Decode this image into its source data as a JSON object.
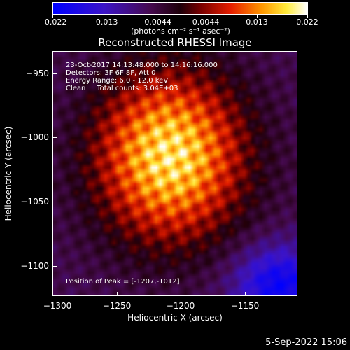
{
  "colorbar": {
    "ticks": [
      "−0.022",
      "−0.013",
      "−0.0044",
      "0.0044",
      "0.013",
      "0.022"
    ],
    "units": "(photons cm⁻² s⁻¹ asec⁻²)"
  },
  "plot": {
    "title": "Reconstructed RHESSI Image",
    "annotation": {
      "line1": "23-Oct-2017 14:13:48.000 to 14:16:16.000",
      "line2": "Detectors: 3F 6F 8F, Att 0",
      "line3": "Energy Range: 6.0 - 12.0 keV",
      "line4": "Clean     Total counts: 3.04E+03"
    },
    "peak": "Position of Peak = [-1207,-1012]",
    "xlabel": "Heliocentric X (arcsec)",
    "ylabel": "Heliocentric Y (arcsec)",
    "xticks": [
      "−1300",
      "−1250",
      "−1200",
      "−1150"
    ],
    "yticks": [
      "−950",
      "−1000",
      "−1050",
      "−1100"
    ]
  },
  "date_stamp": "5-Sep-2022 15:06",
  "colormap": "rainbow-hot (blue-purple-red-yellow-white)"
}
